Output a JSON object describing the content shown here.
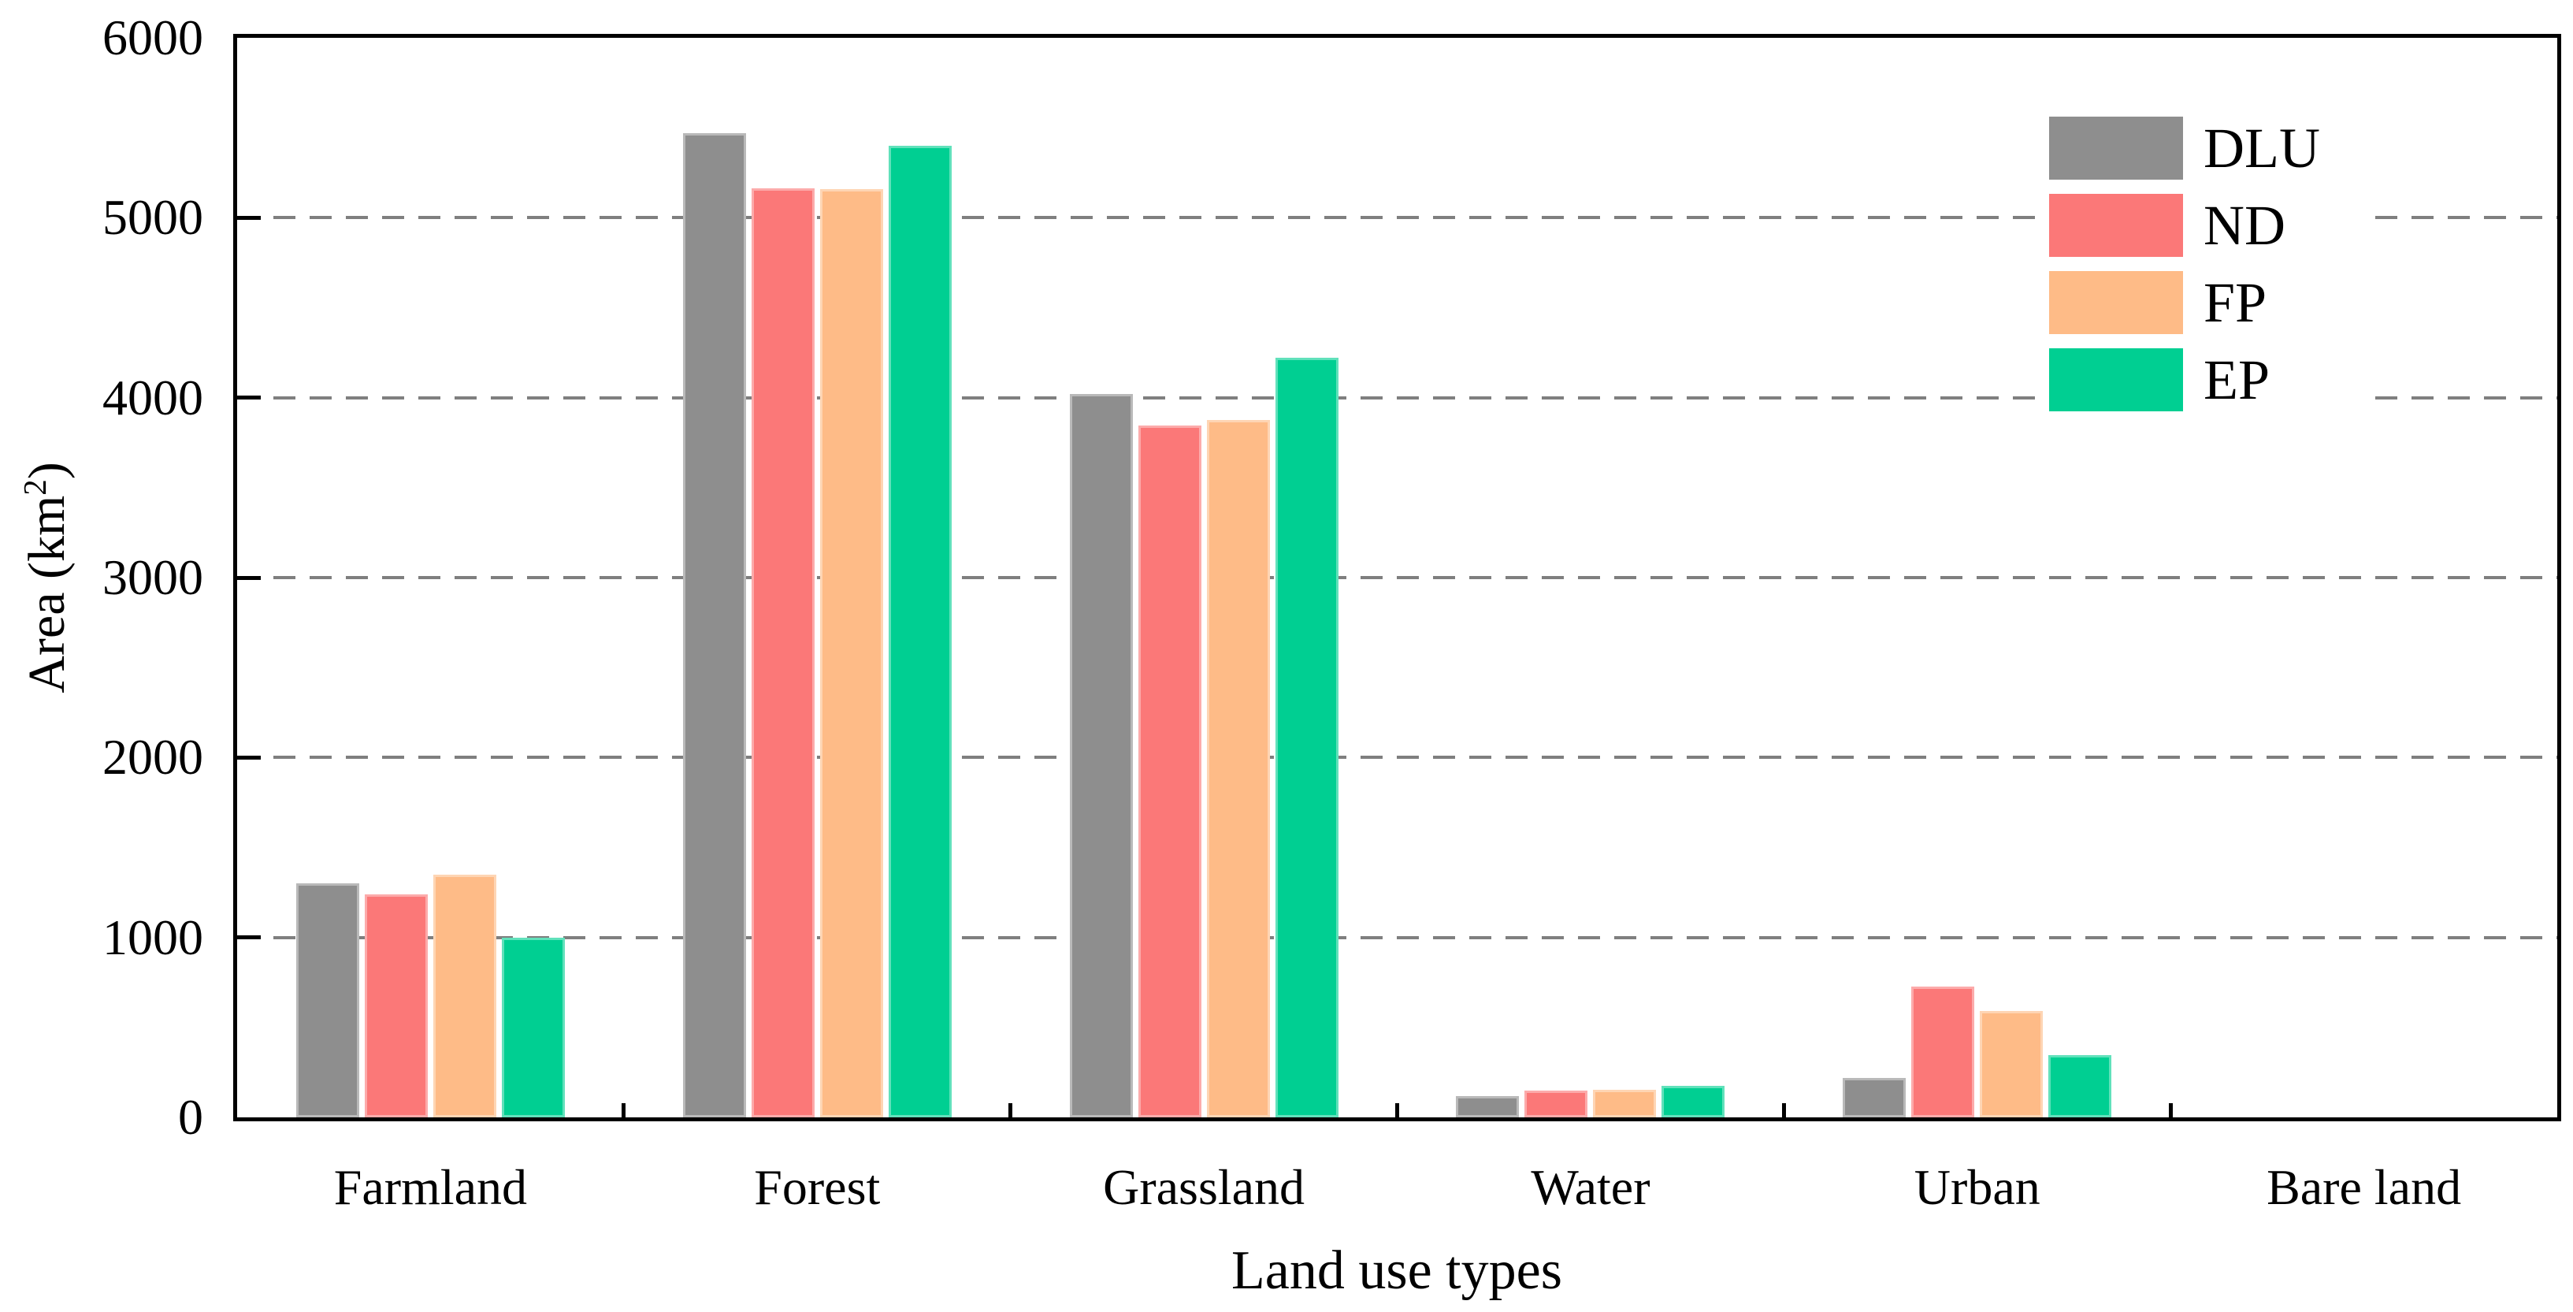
{
  "figure": {
    "background": "#ffffff",
    "text_color": "#000000"
  },
  "chart_data": {
    "type": "bar",
    "title": "",
    "categories": [
      "Farmland",
      "Forest",
      "Grassland",
      "Water",
      "Urban",
      "Bare land"
    ],
    "series": [
      {
        "name": "DLU",
        "color": "#8E8E8E",
        "values": [
          1300,
          5470,
          4020,
          120,
          220,
          0
        ]
      },
      {
        "name": "ND",
        "color": "#FB7878",
        "values": [
          1240,
          5165,
          3845,
          150,
          725,
          0
        ]
      },
      {
        "name": "FP",
        "color": "#FEBB87",
        "values": [
          1350,
          5160,
          3875,
          155,
          590,
          0
        ]
      },
      {
        "name": "EP",
        "color": "#00CF92",
        "values": [
          1000,
          5400,
          4220,
          175,
          345,
          0
        ]
      }
    ],
    "xlabel": "Land use types",
    "ylabel": "Area (km²)",
    "ylabel_parts": {
      "prefix": "Area (km",
      "sup": "2",
      "suffix": ")"
    },
    "ylim": [
      0,
      6000
    ],
    "yticks": [
      0,
      1000,
      2000,
      3000,
      4000,
      5000,
      6000
    ],
    "grid": {
      "axis": "y",
      "style": "dashed",
      "color": "#7F7F7F",
      "lines_at": [
        1000,
        2000,
        3000,
        4000,
        5000
      ]
    },
    "legend": {
      "position": "top-right",
      "frame": false
    },
    "axis_color": "#000000"
  }
}
